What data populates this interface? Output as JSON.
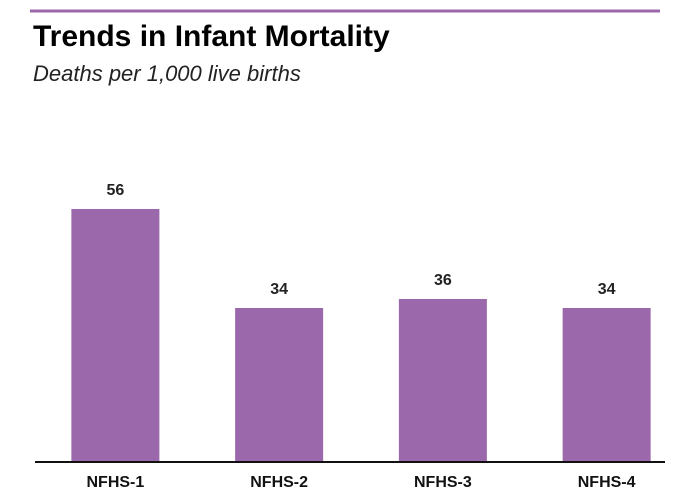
{
  "chart_data": {
    "type": "bar",
    "title": "Trends in Infant Mortality",
    "subtitle": "Deaths per 1,000 live births",
    "categories": [
      "NFHS-1",
      "NFHS-2",
      "NFHS-3",
      "NFHS-4"
    ],
    "values": [
      56,
      34,
      36,
      34
    ],
    "color": "#9b68ab"
  }
}
